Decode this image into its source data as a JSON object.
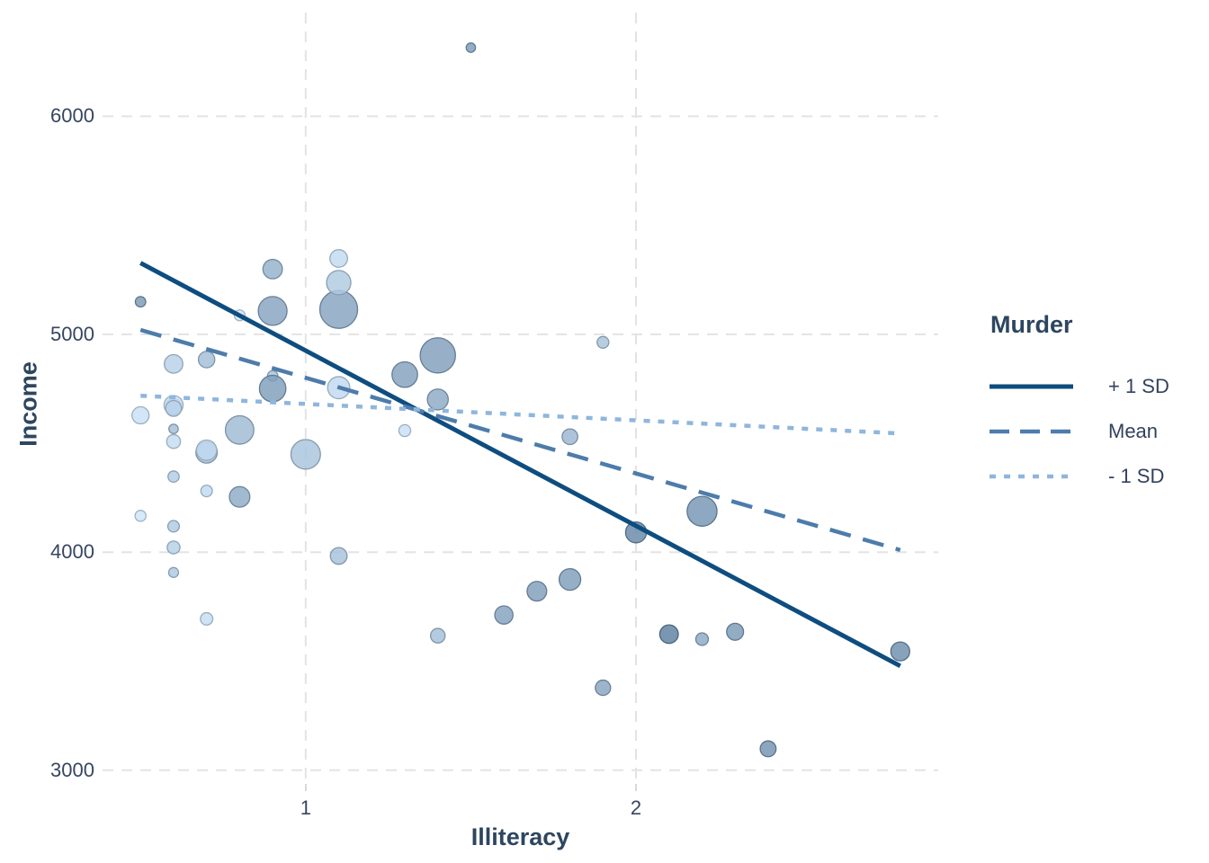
{
  "chart_data": {
    "type": "scatter",
    "title": "",
    "xlabel": "Illiteracy",
    "ylabel": "Income",
    "xlim": [
      0.385,
      2.915
    ],
    "ylim": [
      2937,
      6476
    ],
    "x_ticks": [
      1,
      2
    ],
    "y_ticks": [
      3000,
      4000,
      5000,
      6000
    ],
    "grid": {
      "style": "dashed",
      "color": "#e3e3e3",
      "dash": "12 9",
      "width": 2
    },
    "points_columns": [
      "illiteracy_x",
      "income_y",
      "population_size",
      "murder_color"
    ],
    "points": [
      [
        2.1,
        3624,
        3615,
        15.1
      ],
      [
        1.5,
        6315,
        365,
        11.3
      ],
      [
        1.8,
        4530,
        2212,
        7.8
      ],
      [
        1.9,
        3378,
        2110,
        10.1
      ],
      [
        1.1,
        5114,
        21198,
        10.3
      ],
      [
        0.7,
        4884,
        2541,
        6.8
      ],
      [
        1.1,
        5348,
        3100,
        3.1
      ],
      [
        0.9,
        4809,
        579,
        6.2
      ],
      [
        1.3,
        4815,
        8277,
        10.7
      ],
      [
        2.0,
        4091,
        4931,
        13.9
      ],
      [
        1.9,
        4963,
        868,
        6.2
      ],
      [
        0.6,
        4119,
        813,
        5.3
      ],
      [
        0.9,
        5107,
        11197,
        10.3
      ],
      [
        0.7,
        4458,
        5313,
        7.1
      ],
      [
        0.5,
        4628,
        2861,
        2.3
      ],
      [
        0.6,
        4669,
        2280,
        4.5
      ],
      [
        1.6,
        3712,
        3387,
        10.6
      ],
      [
        2.8,
        3545,
        3806,
        13.2
      ],
      [
        0.7,
        3694,
        1058,
        2.7
      ],
      [
        0.9,
        5299,
        4122,
        8.5
      ],
      [
        1.1,
        4755,
        5814,
        3.3
      ],
      [
        0.9,
        4751,
        9111,
        11.1
      ],
      [
        0.6,
        4675,
        3921,
        2.3
      ],
      [
        2.4,
        3098,
        2341,
        12.5
      ],
      [
        0.8,
        4254,
        4767,
        9.3
      ],
      [
        0.6,
        4347,
        746,
        5.0
      ],
      [
        0.6,
        4508,
        1544,
        2.9
      ],
      [
        0.5,
        5149,
        590,
        11.5
      ],
      [
        0.7,
        4281,
        812,
        3.3
      ],
      [
        1.1,
        5237,
        7333,
        5.2
      ],
      [
        2.2,
        3601,
        1144,
        9.7
      ],
      [
        1.4,
        4903,
        18076,
        10.9
      ],
      [
        1.8,
        3875,
        5441,
        11.1
      ],
      [
        0.8,
        5087,
        637,
        1.4
      ],
      [
        0.8,
        4561,
        10735,
        7.4
      ],
      [
        1.1,
        3983,
        2715,
        6.4
      ],
      [
        0.6,
        4660,
        2284,
        4.2
      ],
      [
        1.0,
        4449,
        11860,
        6.1
      ],
      [
        1.3,
        4558,
        931,
        2.4
      ],
      [
        2.3,
        3635,
        2816,
        11.6
      ],
      [
        0.5,
        4167,
        681,
        1.7
      ],
      [
        1.7,
        3821,
        4173,
        11.0
      ],
      [
        2.2,
        4188,
        12237,
        12.2
      ],
      [
        0.6,
        4022,
        1203,
        4.5
      ],
      [
        0.6,
        3907,
        472,
        5.5
      ],
      [
        1.4,
        4701,
        4981,
        9.5
      ],
      [
        0.6,
        4864,
        3559,
        4.3
      ],
      [
        1.4,
        3617,
        1799,
        6.7
      ],
      [
        0.7,
        4468,
        4589,
        3.0
      ],
      [
        0.6,
        4566,
        376,
        6.9
      ]
    ],
    "size_scale": {
      "field": "population",
      "a": 2.8,
      "b": 0.125
    },
    "color_scale": {
      "field": "murder",
      "domain": [
        1.4,
        15.1
      ],
      "range": [
        "#cfe7fc",
        "#5d7f9f"
      ],
      "fill_opacity": 0.82
    },
    "lines": [
      {
        "name": "+ 1 SD",
        "style": "solid",
        "color": "#0e4d80",
        "width": 5,
        "dash": "",
        "x": [
          0.5,
          2.8
        ],
        "y": [
          5327,
          3478
        ]
      },
      {
        "name": "Mean",
        "style": "dashed",
        "color": "#4d7cab",
        "width": 4.5,
        "dash": "24 14",
        "x": [
          0.5,
          2.8
        ],
        "y": [
          5020,
          4010
        ]
      },
      {
        "name": "- 1 SD",
        "style": "dotted",
        "color": "#8fb6dc",
        "width": 4.5,
        "dash": "7 9",
        "x": [
          0.5,
          2.8
        ],
        "y": [
          4718,
          4545
        ]
      }
    ],
    "legend_position": "right"
  },
  "legend": {
    "title": "Murder",
    "items": [
      {
        "label": "+ 1 SD",
        "color": "#0e4d80",
        "dash": "",
        "width": 5
      },
      {
        "label": "Mean",
        "color": "#4d7cab",
        "dash": "22 12",
        "width": 4.5
      },
      {
        "label": "- 1 SD",
        "color": "#8fb6dc",
        "dash": "7 9",
        "width": 4.5
      }
    ]
  },
  "colors": {
    "background": "#ffffff",
    "gridline": "#e3e3e3",
    "tick_label": "#36465f",
    "axis_title": "#2d4660",
    "tick_mark": "#d9d9d9"
  }
}
